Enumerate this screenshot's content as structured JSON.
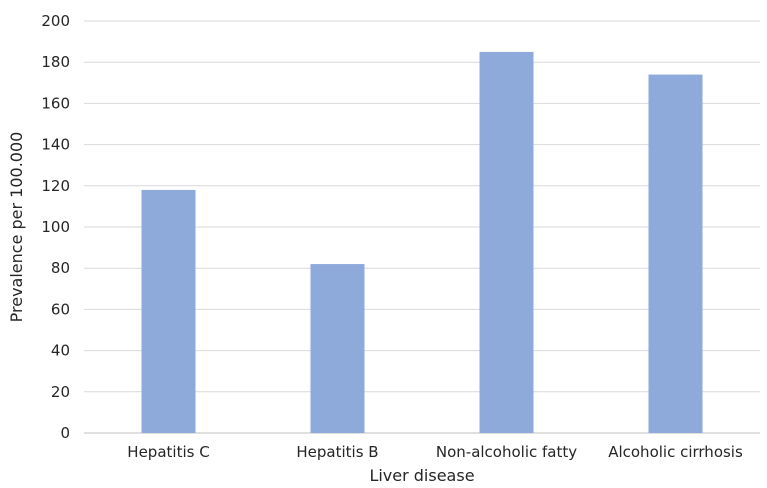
{
  "chart_data": {
    "type": "bar",
    "title": "",
    "xlabel": "Liver disease",
    "ylabel": "Prevalence per 100.000",
    "categories": [
      "Hepatitis C",
      "Hepatitis B",
      "Non-alcoholic fatty",
      "Alcoholic cirrhosis"
    ],
    "values": [
      118,
      82,
      185,
      174
    ],
    "ylim": [
      0,
      200
    ],
    "yticks": [
      "0",
      "20",
      "40",
      "60",
      "80",
      "100",
      "120",
      "140",
      "160",
      "180",
      "200"
    ],
    "grid": true,
    "legend": "none",
    "bar_color": "#8eaadb"
  }
}
